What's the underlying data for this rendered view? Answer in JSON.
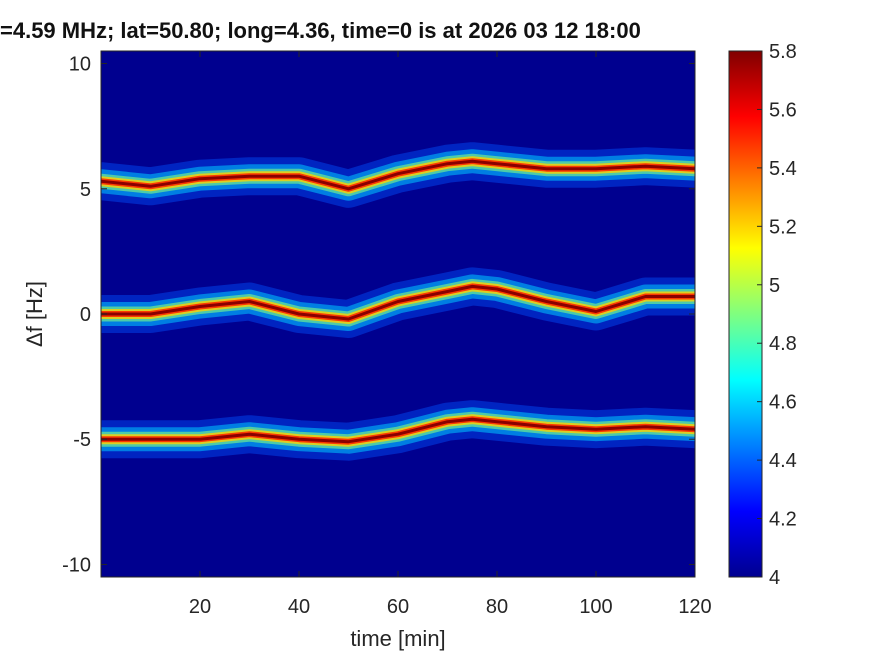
{
  "chart_data": {
    "type": "heatmap",
    "title": "=4.59 MHz;  lat=50.80; long=4.36, time=0 is at 2026 03 12 18:00",
    "xlabel": "time [min]",
    "ylabel": "Δf [Hz]",
    "xlim": [
      0,
      120
    ],
    "ylim": [
      -10.5,
      10.5
    ],
    "x_ticks": [
      20,
      40,
      60,
      80,
      100,
      120
    ],
    "x_tick_labels": [
      "20",
      "40",
      "60",
      "80",
      "100",
      "120"
    ],
    "y_ticks": [
      10,
      5,
      0,
      -5,
      -10
    ],
    "y_tick_labels": [
      "10",
      "5",
      "0",
      "-5",
      "-10"
    ],
    "colorbar": {
      "range": [
        4,
        5.8
      ],
      "colormap": "jet",
      "ticks": [
        5.8,
        5.6,
        5.4,
        5.2,
        5,
        4.8,
        4.6,
        4.4,
        4.2,
        4
      ],
      "tick_labels": [
        "5.8",
        "5.6",
        "5.4",
        "5.2",
        "5",
        "4.8",
        "4.6",
        "4.4",
        "4.2",
        "4"
      ]
    },
    "background_color": "#00008f",
    "series": [
      {
        "x": [
          0,
          10,
          20,
          30,
          40,
          50,
          60,
          70,
          75,
          80,
          90,
          100,
          110,
          120
        ],
        "values": [
          5.3,
          5.1,
          5.4,
          5.5,
          5.5,
          5.0,
          5.6,
          6.0,
          6.1,
          6.0,
          5.8,
          5.8,
          5.9,
          5.8
        ]
      },
      {
        "x": [
          0,
          10,
          20,
          30,
          40,
          50,
          60,
          70,
          75,
          80,
          90,
          100,
          110,
          120
        ],
        "values": [
          0.0,
          0.0,
          0.3,
          0.5,
          0.0,
          -0.2,
          0.5,
          0.9,
          1.1,
          1.0,
          0.5,
          0.1,
          0.7,
          0.7
        ]
      },
      {
        "x": [
          0,
          10,
          20,
          30,
          40,
          50,
          60,
          70,
          75,
          80,
          90,
          100,
          110,
          120
        ],
        "values": [
          -5.0,
          -5.0,
          -5.0,
          -4.8,
          -5.0,
          -5.1,
          -4.8,
          -4.3,
          -4.2,
          -4.3,
          -4.5,
          -4.6,
          -4.5,
          -4.6
        ]
      }
    ]
  }
}
